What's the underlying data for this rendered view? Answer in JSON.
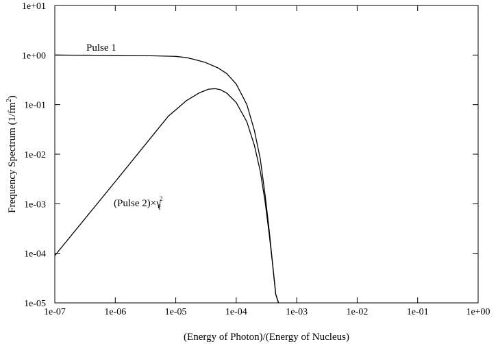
{
  "chart_data": {
    "type": "line",
    "title": "",
    "xlabel": "(Energy of Photon)/(Energy of Nucleus)",
    "ylabel": "Frequency Spectrum (1/fm",
    "ylabel_sup": "2",
    "ylabel_close": ")",
    "xscale": "log",
    "yscale": "log",
    "xlim": [
      1e-07,
      1
    ],
    "ylim": [
      1e-05,
      10
    ],
    "grid": false,
    "x_ticks": [
      "1e-07",
      "1e-06",
      "1e-05",
      "1e-04",
      "1e-03",
      "1e-02",
      "1e-01",
      "1e+00"
    ],
    "y_ticks": [
      "1e-05",
      "1e-04",
      "1e-03",
      "1e-02",
      "1e-01",
      "1e+00",
      "1e+01"
    ],
    "series": [
      {
        "name": "Pulse 1",
        "x": [
          1e-07,
          2e-07,
          5e-07,
          1e-06,
          3e-06,
          1e-05,
          1.5e-05,
          2e-05,
          3e-05,
          5e-05,
          7e-05,
          0.0001,
          0.00015,
          0.0002,
          0.00025,
          0.0003,
          0.00035,
          0.0004,
          0.00045,
          0.0005
        ],
        "y": [
          1.0,
          0.995,
          0.99,
          0.985,
          0.975,
          0.94,
          0.89,
          0.82,
          0.72,
          0.55,
          0.42,
          0.26,
          0.1,
          0.03,
          0.008,
          0.0015,
          0.0003,
          6e-05,
          1.5e-05,
          1e-05
        ]
      },
      {
        "name": "(Pulse 2)×γ",
        "name_sub": "f",
        "name_sup": "2",
        "x": [
          1e-07,
          1e-06,
          7.5e-06,
          1.5e-05,
          2.5e-05,
          3.5e-05,
          4.5e-05,
          5.5e-05,
          7e-05,
          0.0001,
          0.00015,
          0.0002,
          0.00025,
          0.0003,
          0.00035,
          0.0004,
          0.00045,
          0.0005
        ],
        "y": [
          9e-05,
          0.0028,
          0.058,
          0.12,
          0.175,
          0.205,
          0.21,
          0.2,
          0.17,
          0.11,
          0.045,
          0.015,
          0.0045,
          0.0011,
          0.00025,
          6e-05,
          1.5e-05,
          1e-05
        ]
      }
    ]
  }
}
